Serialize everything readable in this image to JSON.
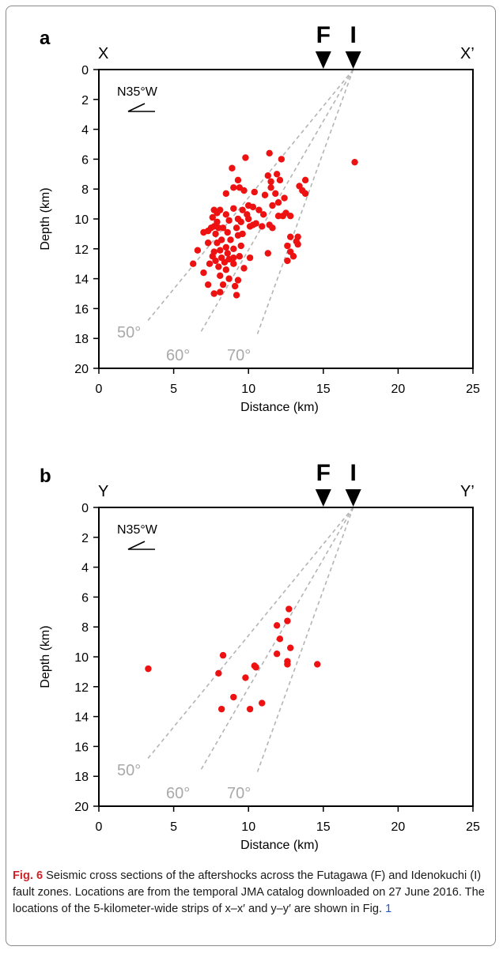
{
  "chart_data": [
    {
      "type": "scatter",
      "panel_label": "a",
      "left_label": "X",
      "right_label": "X’",
      "xlabel": "Distance (km)",
      "ylabel": "Depth (km)",
      "xlim": [
        0,
        25
      ],
      "ylim": [
        20,
        0
      ],
      "xticks": [
        "0",
        "5",
        "10",
        "15",
        "20",
        "25"
      ],
      "yticks": [
        "0",
        "2",
        "4",
        "6",
        "8",
        "10",
        "12",
        "14",
        "16",
        "18",
        "20"
      ],
      "direction_label": "N35°W",
      "faults": [
        {
          "label": "F",
          "x": 15
        },
        {
          "label": "I",
          "x": 17
        }
      ],
      "dip_lines": [
        {
          "label": "50°",
          "apex": [
            17,
            0
          ],
          "end": [
            3.2,
            16.9
          ]
        },
        {
          "label": "60°",
          "apex": [
            17,
            0
          ],
          "end": [
            6.8,
            17.6
          ]
        },
        {
          "label": "70°",
          "apex": [
            17,
            0
          ],
          "end": [
            10.6,
            17.7
          ]
        }
      ],
      "colors": {
        "points": "#ee1111",
        "dip_lines": "#b4b4b4"
      },
      "points": [
        [
          17.1,
          6.2
        ],
        [
          9.8,
          5.9
        ],
        [
          11.4,
          5.6
        ],
        [
          12.2,
          6.0
        ],
        [
          8.9,
          6.6
        ],
        [
          11.3,
          7.1
        ],
        [
          11.9,
          7.0
        ],
        [
          11.5,
          7.5
        ],
        [
          12.1,
          7.4
        ],
        [
          9.3,
          7.4
        ],
        [
          9.4,
          7.9
        ],
        [
          9.0,
          7.9
        ],
        [
          9.7,
          8.1
        ],
        [
          11.5,
          7.9
        ],
        [
          11.1,
          8.4
        ],
        [
          11.8,
          8.3
        ],
        [
          10.4,
          8.2
        ],
        [
          8.5,
          8.3
        ],
        [
          13.4,
          7.8
        ],
        [
          13.6,
          8.1
        ],
        [
          13.8,
          7.4
        ],
        [
          13.8,
          8.3
        ],
        [
          12.0,
          8.9
        ],
        [
          12.4,
          8.6
        ],
        [
          11.6,
          9.1
        ],
        [
          9.0,
          9.3
        ],
        [
          9.6,
          9.4
        ],
        [
          10.0,
          9.1
        ],
        [
          10.3,
          9.2
        ],
        [
          10.7,
          9.4
        ],
        [
          8.1,
          9.4
        ],
        [
          7.7,
          9.4
        ],
        [
          7.9,
          9.6
        ],
        [
          8.5,
          9.7
        ],
        [
          9.9,
          9.7
        ],
        [
          11.0,
          9.7
        ],
        [
          12.0,
          9.8
        ],
        [
          12.5,
          9.6
        ],
        [
          12.8,
          9.8
        ],
        [
          12.3,
          9.8
        ],
        [
          7.6,
          9.9
        ],
        [
          8.7,
          10.1
        ],
        [
          9.3,
          10.0
        ],
        [
          9.5,
          10.2
        ],
        [
          10.0,
          10.0
        ],
        [
          10.5,
          10.3
        ],
        [
          7.9,
          10.2
        ],
        [
          7.7,
          10.5
        ],
        [
          7.5,
          10.6
        ],
        [
          8.0,
          10.6
        ],
        [
          8.3,
          10.6
        ],
        [
          7.3,
          10.8
        ],
        [
          7.0,
          10.9
        ],
        [
          7.8,
          11.0
        ],
        [
          8.6,
          10.9
        ],
        [
          9.2,
          10.6
        ],
        [
          10.1,
          10.5
        ],
        [
          10.3,
          10.4
        ],
        [
          10.9,
          10.5
        ],
        [
          11.4,
          10.4
        ],
        [
          11.6,
          10.6
        ],
        [
          8.2,
          11.4
        ],
        [
          8.8,
          11.4
        ],
        [
          9.3,
          11.1
        ],
        [
          9.6,
          11.0
        ],
        [
          12.8,
          11.2
        ],
        [
          13.3,
          11.2
        ],
        [
          13.2,
          11.5
        ],
        [
          13.3,
          11.7
        ],
        [
          7.3,
          11.6
        ],
        [
          7.9,
          11.6
        ],
        [
          8.5,
          11.9
        ],
        [
          9.0,
          12.0
        ],
        [
          9.5,
          11.8
        ],
        [
          12.6,
          11.8
        ],
        [
          12.8,
          12.2
        ],
        [
          13.0,
          12.5
        ],
        [
          12.6,
          12.8
        ],
        [
          11.3,
          12.3
        ],
        [
          6.6,
          12.1
        ],
        [
          7.7,
          12.2
        ],
        [
          8.1,
          12.1
        ],
        [
          8.6,
          12.3
        ],
        [
          7.6,
          12.5
        ],
        [
          7.8,
          12.8
        ],
        [
          8.2,
          12.6
        ],
        [
          8.4,
          12.9
        ],
        [
          8.7,
          12.7
        ],
        [
          9.0,
          12.6
        ],
        [
          9.4,
          12.5
        ],
        [
          10.1,
          12.6
        ],
        [
          6.3,
          13.0
        ],
        [
          7.4,
          13.0
        ],
        [
          8.0,
          13.2
        ],
        [
          8.5,
          13.4
        ],
        [
          9.0,
          13.0
        ],
        [
          9.7,
          13.3
        ],
        [
          7.0,
          13.6
        ],
        [
          8.1,
          13.8
        ],
        [
          8.7,
          14.0
        ],
        [
          9.3,
          14.1
        ],
        [
          9.1,
          14.5
        ],
        [
          8.3,
          14.4
        ],
        [
          7.3,
          14.4
        ],
        [
          7.7,
          15.0
        ],
        [
          8.1,
          14.9
        ],
        [
          9.2,
          15.1
        ]
      ]
    },
    {
      "type": "scatter",
      "panel_label": "b",
      "left_label": "Y",
      "right_label": "Y’",
      "xlabel": "Distance (km)",
      "ylabel": "Depth (km)",
      "xlim": [
        0,
        25
      ],
      "ylim": [
        20,
        0
      ],
      "xticks": [
        "0",
        "5",
        "10",
        "15",
        "20",
        "25"
      ],
      "yticks": [
        "0",
        "2",
        "4",
        "6",
        "8",
        "10",
        "12",
        "14",
        "16",
        "18",
        "20"
      ],
      "direction_label": "N35°W",
      "faults": [
        {
          "label": "F",
          "x": 15
        },
        {
          "label": "I",
          "x": 17
        }
      ],
      "dip_lines": [
        {
          "label": "50°",
          "apex": [
            17,
            0
          ],
          "end": [
            3.2,
            16.9
          ]
        },
        {
          "label": "60°",
          "apex": [
            17,
            0
          ],
          "end": [
            6.8,
            17.6
          ]
        },
        {
          "label": "70°",
          "apex": [
            17,
            0
          ],
          "end": [
            10.6,
            17.7
          ]
        }
      ],
      "colors": {
        "points": "#ee1111",
        "dip_lines": "#b4b4b4"
      },
      "points": [
        [
          12.7,
          6.8
        ],
        [
          12.6,
          7.6
        ],
        [
          11.9,
          7.9
        ],
        [
          12.1,
          8.8
        ],
        [
          12.8,
          9.4
        ],
        [
          11.9,
          9.8
        ],
        [
          12.6,
          10.3
        ],
        [
          12.6,
          10.5
        ],
        [
          14.6,
          10.5
        ],
        [
          10.4,
          10.6
        ],
        [
          10.5,
          10.7
        ],
        [
          8.3,
          9.9
        ],
        [
          8.0,
          11.1
        ],
        [
          9.8,
          11.4
        ],
        [
          3.3,
          10.8
        ],
        [
          9.0,
          12.7
        ],
        [
          10.9,
          13.1
        ],
        [
          8.2,
          13.5
        ],
        [
          10.1,
          13.5
        ]
      ]
    }
  ],
  "caption": {
    "label": "Fig. 6",
    "text": "Seismic cross sections of the aftershocks across the Futagawa (F) and Idenokuchi (I) fault zones. Locations are from the temporal JMA catalog downloaded on 27 June 2016. The locations of the 5-kilometer-wide strips of x–x′ and y–y′ are shown in Fig.",
    "ref": "1"
  }
}
